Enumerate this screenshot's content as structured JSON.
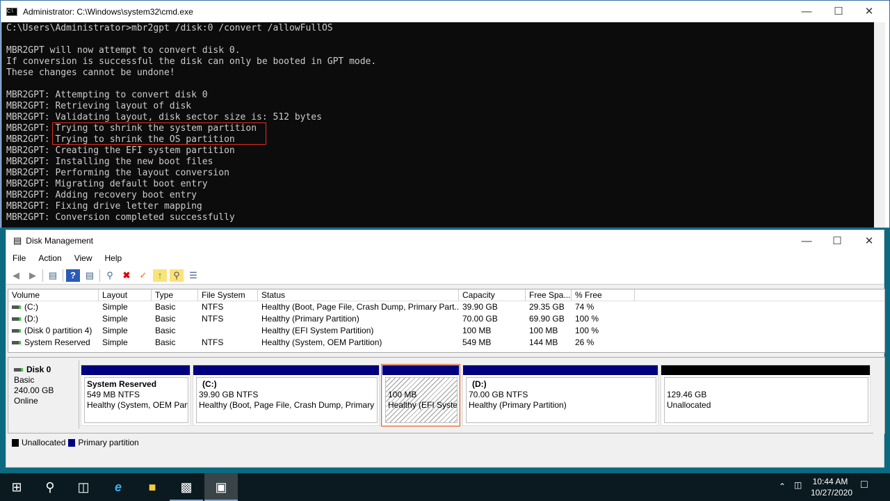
{
  "cmd": {
    "title": "Administrator: C:\\Windows\\system32\\cmd.exe",
    "lines": [
      "C:\\Users\\Administrator>mbr2gpt /disk:0 /convert /allowFullOS",
      "",
      "MBR2GPT will now attempt to convert disk 0.",
      "If conversion is successful the disk can only be booted in GPT mode.",
      "These changes cannot be undone!",
      "",
      "MBR2GPT: Attempting to convert disk 0",
      "MBR2GPT: Retrieving layout of disk",
      "MBR2GPT: Validating layout, disk sector size is: 512 bytes",
      "MBR2GPT: Trying to shrink the system partition",
      "MBR2GPT: Trying to shrink the OS partition",
      "MBR2GPT: Creating the EFI system partition",
      "MBR2GPT: Installing the new boot files",
      "MBR2GPT: Performing the layout conversion",
      "MBR2GPT: Migrating default boot entry",
      "MBR2GPT: Adding recovery boot entry",
      "MBR2GPT: Fixing drive letter mapping",
      "MBR2GPT: Conversion completed successfully"
    ]
  },
  "dm": {
    "title": "Disk Management",
    "menu": [
      "File",
      "Action",
      "View",
      "Help"
    ],
    "columns": [
      "Volume",
      "Layout",
      "Type",
      "File System",
      "Status",
      "Capacity",
      "Free Spa...",
      "% Free"
    ],
    "rows": [
      [
        "(C:)",
        "Simple",
        "Basic",
        "NTFS",
        "Healthy (Boot, Page File, Crash Dump, Primary Part...",
        "39.90 GB",
        "29.35 GB",
        "74 %"
      ],
      [
        "(D:)",
        "Simple",
        "Basic",
        "NTFS",
        "Healthy (Primary Partition)",
        "70.00 GB",
        "69.90 GB",
        "100 %"
      ],
      [
        "(Disk 0 partition 4)",
        "Simple",
        "Basic",
        "",
        "Healthy (EFI System Partition)",
        "100 MB",
        "100 MB",
        "100 %"
      ],
      [
        "System Reserved",
        "Simple",
        "Basic",
        "NTFS",
        "Healthy (System, OEM Partition)",
        "549 MB",
        "144 MB",
        "26 %"
      ]
    ],
    "disk": {
      "name": "Disk 0",
      "type": "Basic",
      "size": "240.00 GB",
      "status": "Online"
    },
    "partitions": [
      {
        "name": "System Reserved",
        "size": "549 MB NTFS",
        "status": "Healthy (System, OEM Parti"
      },
      {
        "name": "(C:)",
        "size": "39.90 GB NTFS",
        "status": "Healthy (Boot, Page File, Crash Dump, Primary P"
      },
      {
        "name": "",
        "size": "100 MB",
        "status": "Healthy (EFI System"
      },
      {
        "name": "(D:)",
        "size": "70.00 GB NTFS",
        "status": "Healthy (Primary Partition)"
      },
      {
        "name": "",
        "size": "129.46 GB",
        "status": "Unallocated"
      }
    ],
    "legend": [
      {
        "label": "Unallocated",
        "color": "#000000"
      },
      {
        "label": "Primary partition",
        "color": "#00007f"
      }
    ]
  },
  "taskbar": {
    "time": "10:44 AM",
    "date": "10/27/2020"
  }
}
